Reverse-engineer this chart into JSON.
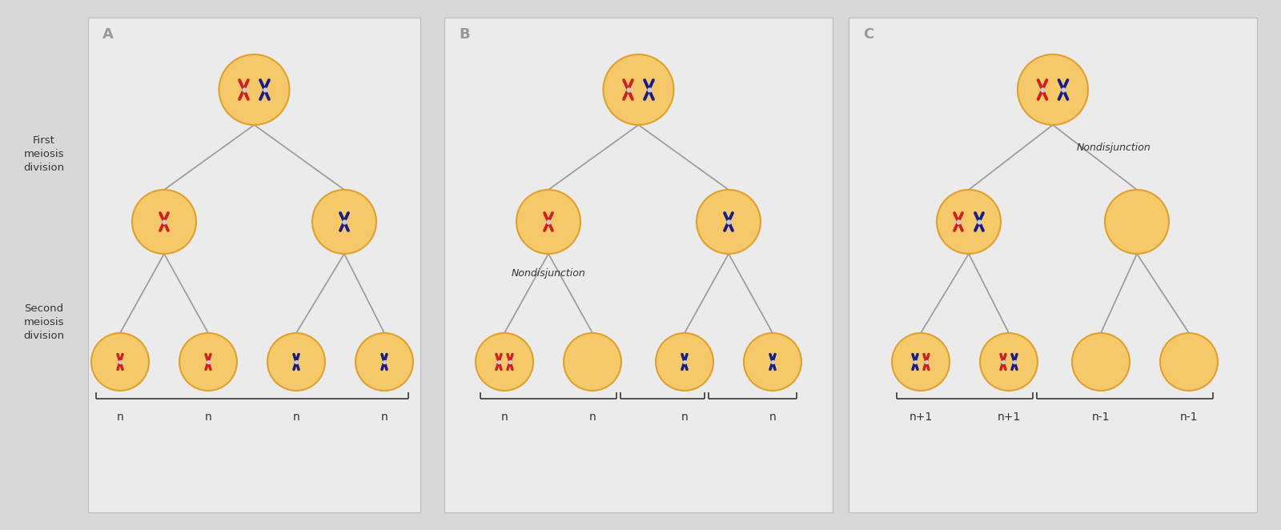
{
  "bg_outer": "#d8d8d8",
  "bg_panel": "#ebebeb",
  "cell_color": "#f5c96a",
  "cell_edge": "#e0a030",
  "line_color": "#999999",
  "text_color": "#333333",
  "red_chr": "#cc2222",
  "blue_chr": "#1a1a88",
  "panel_labels": [
    "A",
    "B",
    "C"
  ],
  "left_labels": [
    "First\nmeiosis\ndivision",
    "Second\nmeiosis\ndivision"
  ],
  "nondisjunction_text": "Nondisjunction",
  "bottom_labels_A": [
    "n",
    "n",
    "n",
    "n"
  ],
  "bottom_labels_B": [
    "n",
    "n",
    "n",
    "n"
  ],
  "bottom_labels_C": [
    "n+1",
    "n+1",
    "n-1",
    "n-1"
  ]
}
